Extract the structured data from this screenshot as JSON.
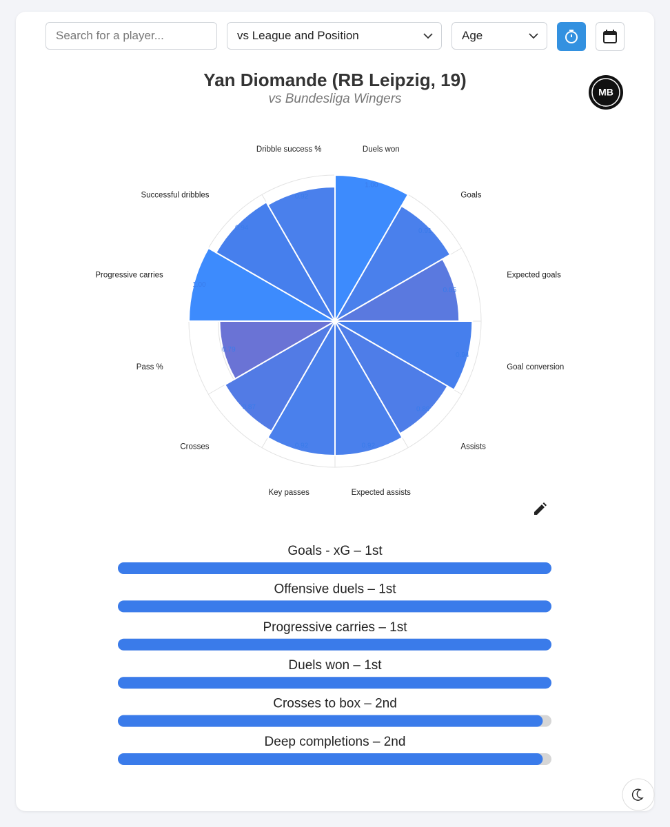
{
  "controls": {
    "search_placeholder": "Search for a player...",
    "comparison": "vs League and Position",
    "filter": "Age"
  },
  "header": {
    "logo": "MB"
  },
  "chart_data": [
    {
      "type": "polar",
      "title": "Yan Diomande (RB Leipzig, 19)",
      "subtitle": "vs Bundesliga Wingers",
      "categories": [
        "Duels won",
        "Goals",
        "Expected goals",
        "Goal conversion",
        "Assists",
        "Expected assists",
        "Key passes",
        "Crosses",
        "Pass %",
        "Progressive carries",
        "Successful dribbles",
        "Dribble success %"
      ],
      "values": [
        1,
        0.91,
        0.85,
        0.94,
        0.89,
        0.92,
        0.92,
        0.87,
        0.79,
        1,
        0.94,
        0.92
      ],
      "value_labels": [
        "1.00",
        "0.91",
        "0.85",
        "0.94",
        "0.89",
        "0.92",
        "0.92",
        "0.87",
        "0.79",
        "1.00",
        "0.94",
        "0.92"
      ],
      "colors": [
        "#3d8bfd",
        "#4a80ec",
        "#5a79df",
        "#467fed",
        "#4e7de8",
        "#4a80ec",
        "#4a80ec",
        "#527be5",
        "#6a73d5",
        "#3d8bfd",
        "#467fed",
        "#4a80ec"
      ],
      "rlim": [
        0,
        1
      ],
      "rticks": [
        0.2,
        0.4,
        0.6,
        0.8,
        1
      ],
      "grid": true
    },
    {
      "type": "hbar",
      "categories": [
        "Goals - xG – 1st",
        "Offensive duels – 1st",
        "Progressive carries – 1st",
        "Duels won – 1st",
        "Crosses to box – 2nd",
        "Deep completions – 2nd"
      ],
      "values": [
        1,
        1,
        1,
        1,
        0.98,
        0.98
      ],
      "xlim": [
        0,
        1
      ],
      "color": "#3a7bea",
      "track_color": "#d6d6d6"
    }
  ]
}
